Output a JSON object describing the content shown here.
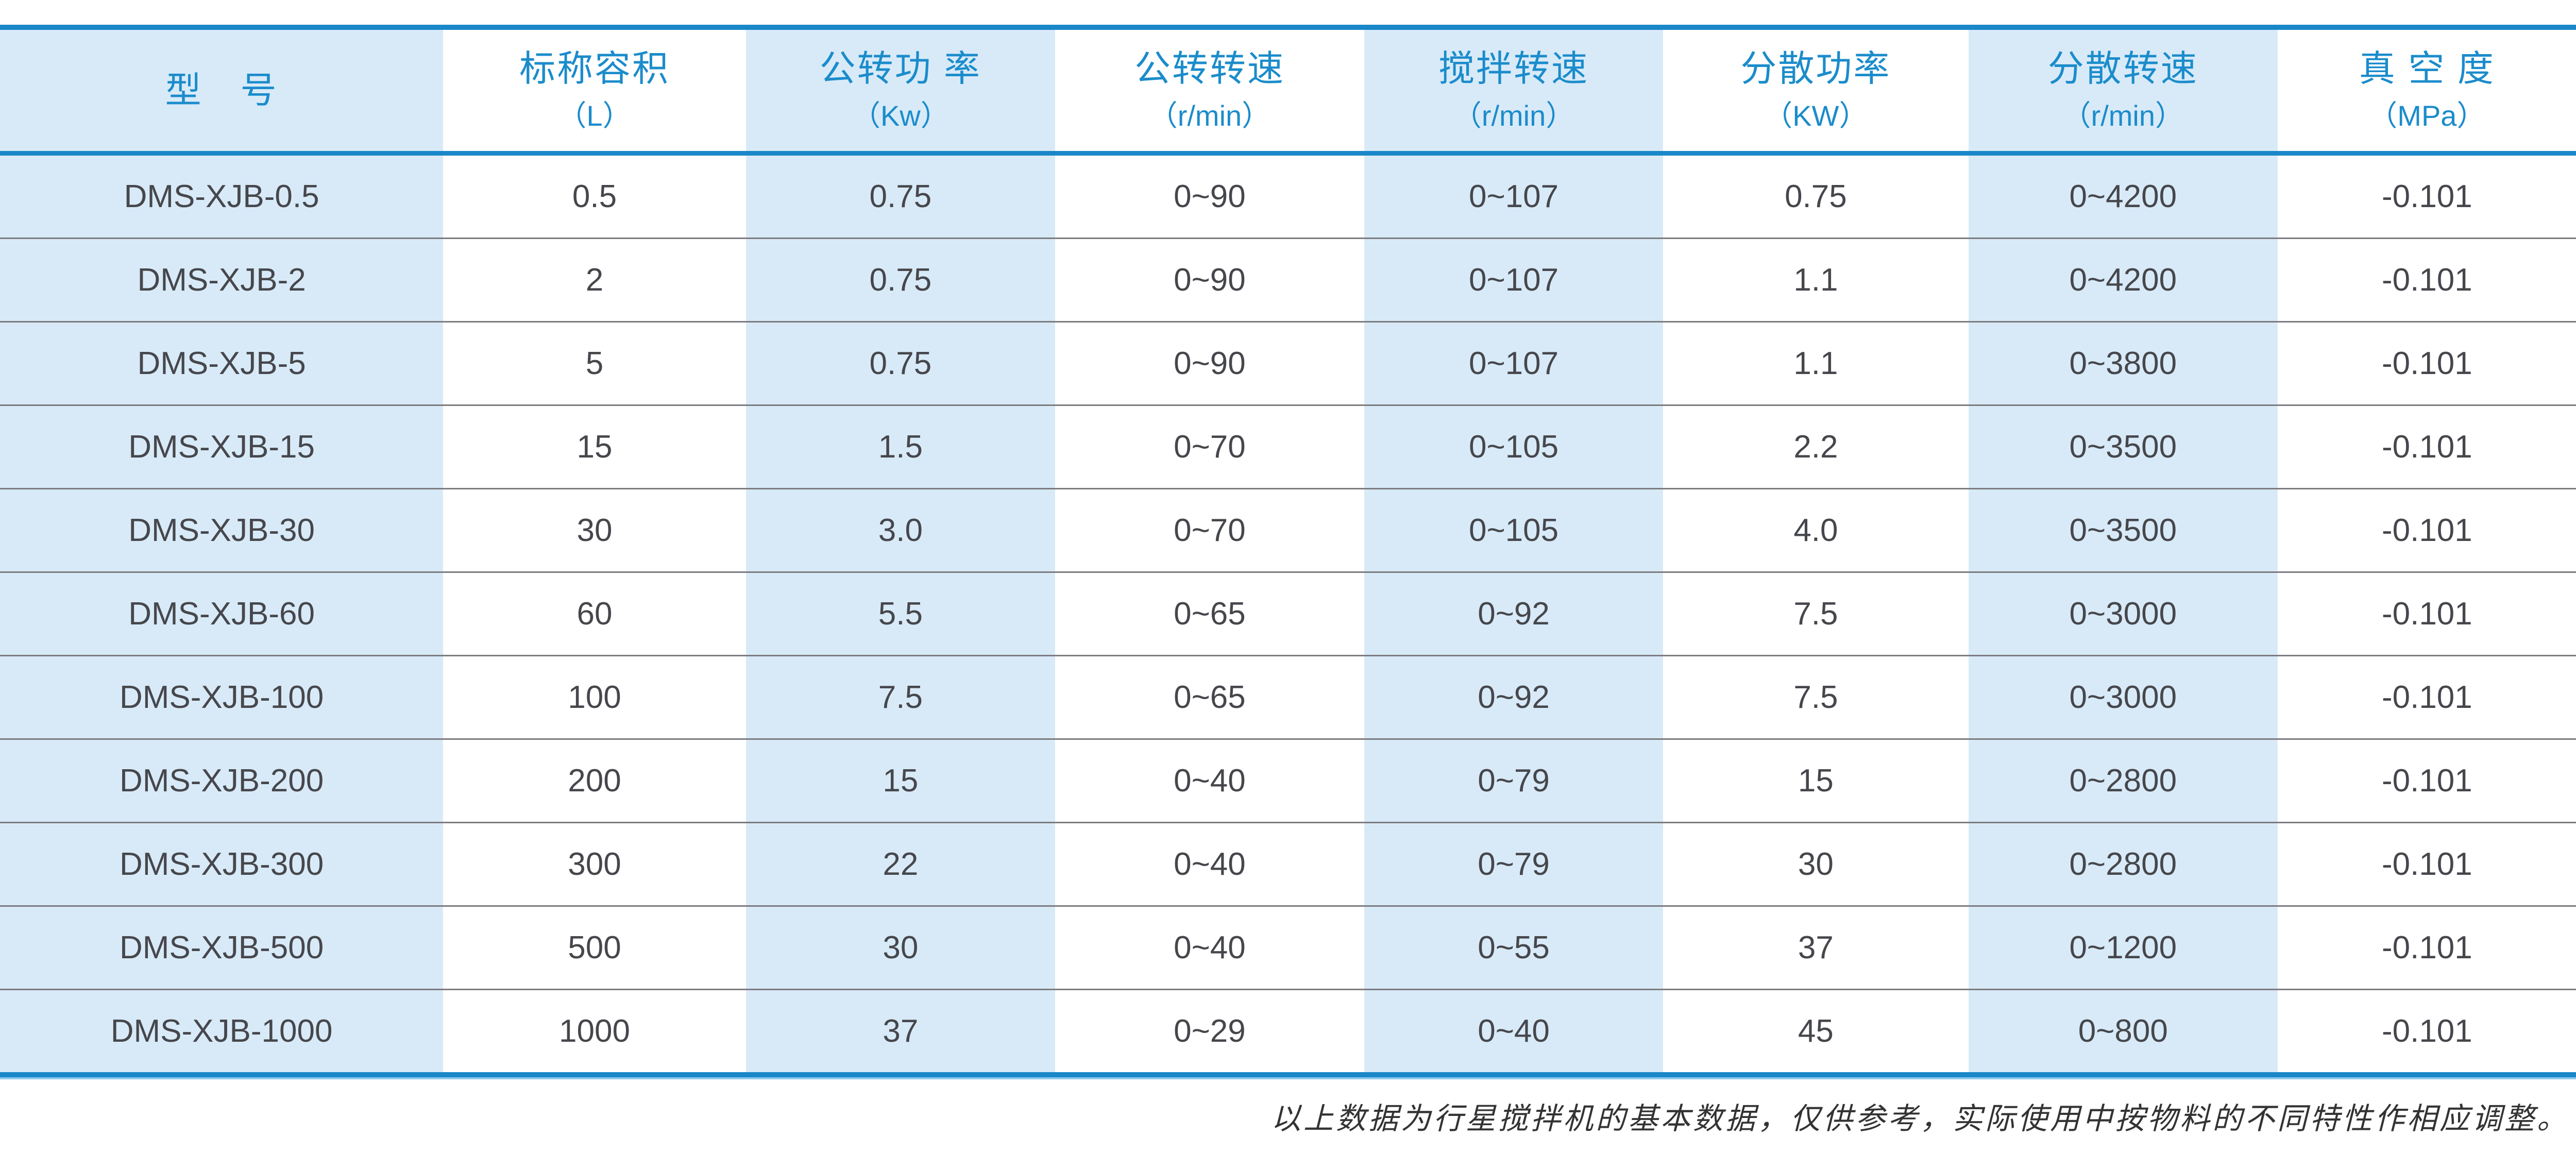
{
  "table": {
    "columns": [
      {
        "title": "型　号",
        "unit": ""
      },
      {
        "title": "标称容积",
        "unit": "（L）"
      },
      {
        "title": "公转功 率",
        "unit": "（Kw）"
      },
      {
        "title": "公转转速",
        "unit": "（r/min）"
      },
      {
        "title": "搅拌转速",
        "unit": "（r/min）"
      },
      {
        "title": "分散功率",
        "unit": "（KW）"
      },
      {
        "title": "分散转速",
        "unit": "（r/min）"
      },
      {
        "title": "真 空 度",
        "unit": "（MPa）"
      }
    ],
    "rows": [
      [
        "DMS-XJB-0.5",
        "0.5",
        "0.75",
        "0~90",
        "0~107",
        "0.75",
        "0~4200",
        "-0.101"
      ],
      [
        "DMS-XJB-2",
        "2",
        "0.75",
        "0~90",
        "0~107",
        "1.1",
        "0~4200",
        "-0.101"
      ],
      [
        "DMS-XJB-5",
        "5",
        "0.75",
        "0~90",
        "0~107",
        "1.1",
        "0~3800",
        "-0.101"
      ],
      [
        "DMS-XJB-15",
        "15",
        "1.5",
        "0~70",
        "0~105",
        "2.2",
        "0~3500",
        "-0.101"
      ],
      [
        "DMS-XJB-30",
        "30",
        "3.0",
        "0~70",
        "0~105",
        "4.0",
        "0~3500",
        "-0.101"
      ],
      [
        "DMS-XJB-60",
        "60",
        "5.5",
        "0~65",
        "0~92",
        "7.5",
        "0~3000",
        "-0.101"
      ],
      [
        "DMS-XJB-100",
        "100",
        "7.5",
        "0~65",
        "0~92",
        "7.5",
        "0~3000",
        "-0.101"
      ],
      [
        "DMS-XJB-200",
        "200",
        "15",
        "0~40",
        "0~79",
        "15",
        "0~2800",
        "-0.101"
      ],
      [
        "DMS-XJB-300",
        "300",
        "22",
        "0~40",
        "0~79",
        "30",
        "0~2800",
        "-0.101"
      ],
      [
        "DMS-XJB-500",
        "500",
        "30",
        "0~40",
        "0~55",
        "37",
        "0~1200",
        "-0.101"
      ],
      [
        "DMS-XJB-1000",
        "1000",
        "37",
        "0~29",
        "0~40",
        "45",
        "0~800",
        "-0.101"
      ]
    ],
    "shaded_column_indexes": [
      0,
      2,
      4,
      6
    ]
  },
  "footer": {
    "note": "以上数据为行星搅拌机的基本数据，仅供参考，实际使用中按物料的不同特性作相应调整。"
  },
  "colors": {
    "accent_blue": "#1a87c8",
    "accent_blue_light": "#8ecbec",
    "header_text": "#1b8ccb",
    "shaded_column": "#d8eaf8",
    "body_text": "#46474c",
    "separator": "#7c7c80",
    "note_text": "#333333"
  }
}
